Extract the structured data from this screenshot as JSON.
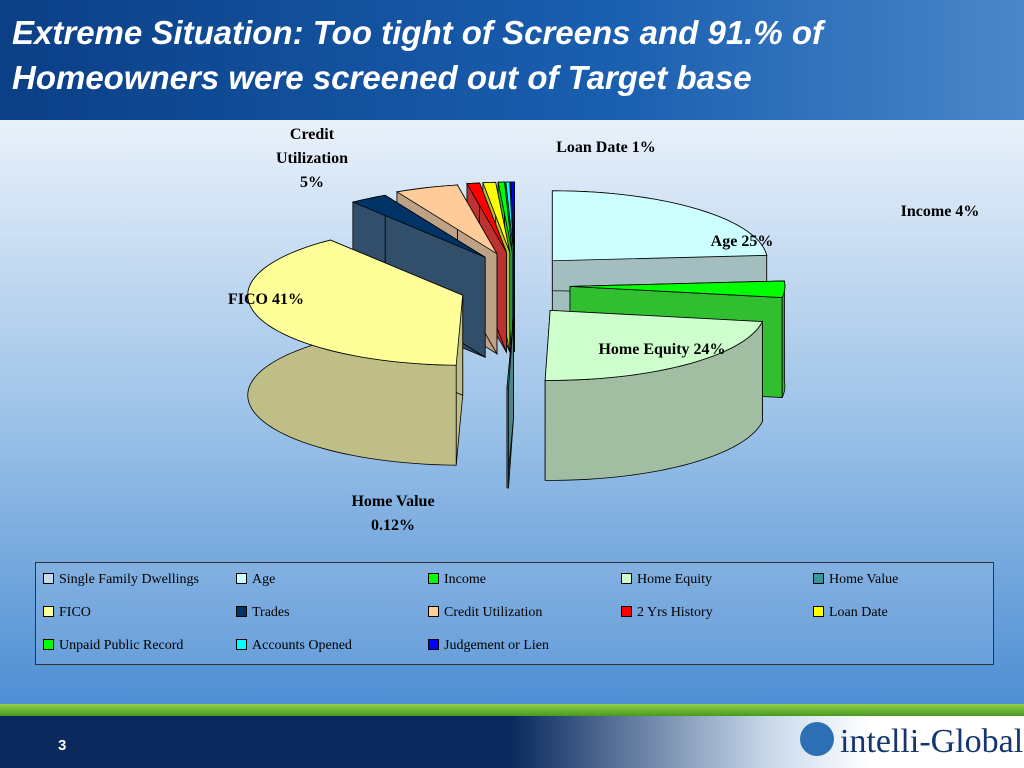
{
  "title": "Extreme Situation: Too tight of Screens and 91.% of Homeowners were screened out of Target base",
  "chart_data": {
    "type": "pie",
    "categories": [
      "Single Family Dwellings",
      "Age",
      "Income",
      "Home Equity",
      "Home Value",
      "FICO",
      "Trades",
      "Credit Utilization",
      "2 Yrs History",
      "Loan Date",
      "Unpaid Public Record",
      "Accounts Opened",
      "Judgement or Lien"
    ],
    "values": [
      0,
      25,
      4,
      24,
      0.12,
      41,
      3,
      5,
      1,
      1,
      0.5,
      0.3,
      0.3
    ],
    "value_labels": [
      null,
      "Age 25%",
      "Income 4%",
      "Home Equity 24%",
      "Home Value 0.12%",
      "FICO 41%",
      null,
      "Credit Utilization 5%",
      null,
      "Loan Date 1%",
      null,
      null,
      null
    ],
    "colors": [
      "#c6dbe8",
      "#ccffff",
      "#00ff00",
      "#ccffcc",
      "#339999",
      "#ffff99",
      "#003366",
      "#ffcc99",
      "#ff0000",
      "#ffff00",
      "#00ff00",
      "#00ffff",
      "#0000ff"
    ],
    "legend": "bottom"
  },
  "footer": {
    "page": "3",
    "logo": "intelli-Global"
  }
}
